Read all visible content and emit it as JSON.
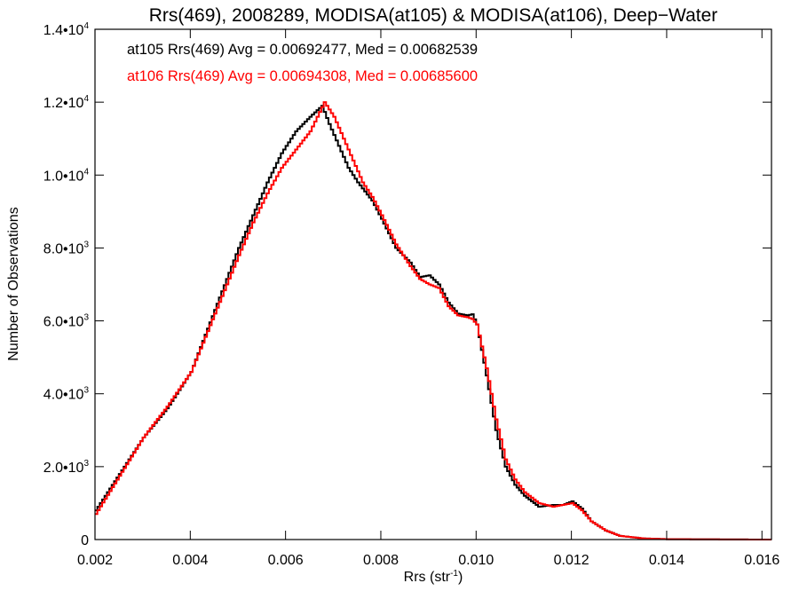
{
  "chart_data": {
    "type": "line",
    "title": "Rrs(469), 2008289, MODISA(at105) & MODISA(at106), Deep−Water",
    "xlabel": {
      "base": "Rrs (str",
      "exponent": "-1",
      "suffix": ")"
    },
    "ylabel": "Number of Observations",
    "xlim": [
      0.002,
      0.0162
    ],
    "ylim": [
      0,
      14000
    ],
    "x_ticks": [
      {
        "value": 0.002,
        "label": "0.002"
      },
      {
        "value": 0.004,
        "label": "0.004"
      },
      {
        "value": 0.006,
        "label": "0.006"
      },
      {
        "value": 0.008,
        "label": "0.008"
      },
      {
        "value": 0.01,
        "label": "0.010"
      },
      {
        "value": 0.012,
        "label": "0.012"
      },
      {
        "value": 0.014,
        "label": "0.014"
      },
      {
        "value": 0.016,
        "label": "0.016"
      }
    ],
    "y_ticks": [
      {
        "value": 0,
        "mantissa": "0",
        "exponent": ""
      },
      {
        "value": 2000,
        "mantissa": "2.0•10",
        "exponent": "3"
      },
      {
        "value": 4000,
        "mantissa": "4.0•10",
        "exponent": "3"
      },
      {
        "value": 6000,
        "mantissa": "6.0•10",
        "exponent": "3"
      },
      {
        "value": 8000,
        "mantissa": "8.0•10",
        "exponent": "3"
      },
      {
        "value": 10000,
        "mantissa": "1.0•10",
        "exponent": "4"
      },
      {
        "value": 12000,
        "mantissa": "1.2•10",
        "exponent": "4"
      },
      {
        "value": 14000,
        "mantissa": "1.4•10",
        "exponent": "4"
      }
    ],
    "annotations": [
      {
        "text": "at105 Rrs(469) Avg = 0.00692477, Med = 0.00682539",
        "color": "#000000"
      },
      {
        "text": "at106 Rrs(469) Avg = 0.00694308, Med = 0.00685600",
        "color": "#ff0000"
      }
    ],
    "series_style": "step",
    "series": [
      {
        "color": "#000000",
        "x": [
          0.002,
          0.0025,
          0.003,
          0.0035,
          0.004,
          0.0045,
          0.005,
          0.0053,
          0.0056,
          0.0059,
          0.0062,
          0.0065,
          0.00675,
          0.0069,
          0.0071,
          0.0073,
          0.0075,
          0.0078,
          0.008,
          0.0083,
          0.0086,
          0.0088,
          0.009,
          0.0092,
          0.0094,
          0.0096,
          0.0098,
          0.0099,
          0.01,
          0.0102,
          0.0104,
          0.0106,
          0.0108,
          0.011,
          0.0113,
          0.0116,
          0.0118,
          0.012,
          0.0122,
          0.0124,
          0.0127,
          0.013,
          0.0135,
          0.014,
          0.015,
          0.016,
          0.0162
        ],
        "y": [
          800,
          1800,
          2800,
          3600,
          4600,
          6300,
          8000,
          8900,
          9800,
          10600,
          11200,
          11600,
          11900,
          11400,
          10800,
          10200,
          9800,
          9300,
          8800,
          8000,
          7600,
          7200,
          7250,
          7000,
          6500,
          6200,
          6150,
          6180,
          5900,
          4500,
          3000,
          2000,
          1500,
          1200,
          900,
          950,
          950,
          1050,
          850,
          500,
          250,
          100,
          30,
          10,
          5,
          0,
          0
        ]
      },
      {
        "color": "#ff0000",
        "x": [
          0.002,
          0.0025,
          0.003,
          0.0035,
          0.004,
          0.0045,
          0.005,
          0.0053,
          0.0056,
          0.0059,
          0.0062,
          0.0065,
          0.0068,
          0.007,
          0.0072,
          0.0074,
          0.0076,
          0.0078,
          0.008,
          0.0083,
          0.0086,
          0.0088,
          0.009,
          0.0092,
          0.0094,
          0.0096,
          0.0098,
          0.0099,
          0.01,
          0.0102,
          0.0104,
          0.0106,
          0.0108,
          0.011,
          0.0113,
          0.0116,
          0.0118,
          0.012,
          0.0122,
          0.0124,
          0.0127,
          0.013,
          0.0135,
          0.014,
          0.015,
          0.016,
          0.0162
        ],
        "y": [
          700,
          1750,
          2800,
          3650,
          4600,
          6200,
          7800,
          8700,
          9500,
          10200,
          10700,
          11200,
          12000,
          11600,
          11000,
          10400,
          9800,
          9400,
          8900,
          8100,
          7500,
          7150,
          7000,
          6900,
          6400,
          6150,
          6100,
          6050,
          5900,
          4700,
          3300,
          2200,
          1650,
          1300,
          1000,
          900,
          950,
          1000,
          800,
          500,
          250,
          100,
          30,
          10,
          5,
          0,
          0
        ]
      }
    ]
  }
}
